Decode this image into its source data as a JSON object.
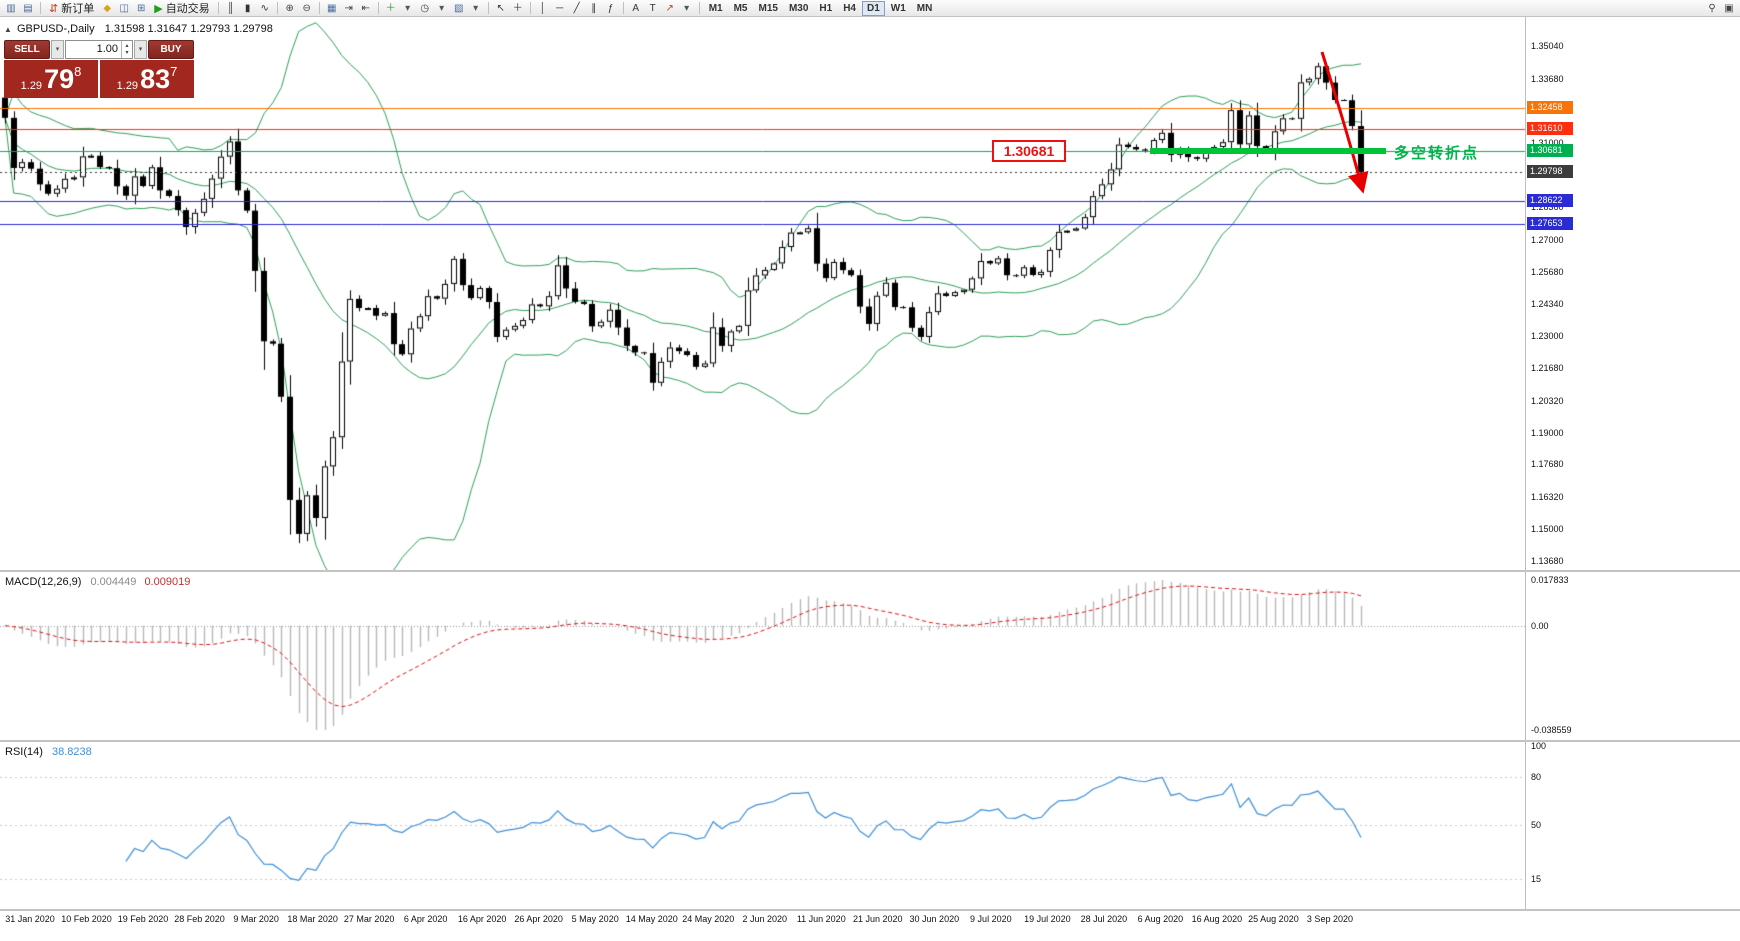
{
  "window": {
    "symbol_period": "GBPUSD-,Daily",
    "ohlc": "1.31598 1.31647 1.29793 1.29798"
  },
  "icons": {
    "trade_panel_collapse": "▲",
    "dropdown": "▾",
    "spin_up": "▴",
    "spin_down": "▾"
  },
  "toolbar": {
    "items": [
      {
        "type": "icon",
        "name": "new-chart-icon",
        "glyph": "▥"
      },
      {
        "type": "icon",
        "name": "profiles-icon",
        "glyph": "▤"
      },
      {
        "type": "sep"
      },
      {
        "type": "button",
        "name": "new-order-button",
        "glyph": "⇵",
        "glyph_color": "#c23b22",
        "label": "新订单"
      },
      {
        "type": "icon",
        "name": "metaeditor-icon",
        "glyph": "◆",
        "color": "#d9a520"
      },
      {
        "type": "icon",
        "name": "data-window-icon",
        "glyph": "◫",
        "color": "#49699c"
      },
      {
        "type": "icon",
        "name": "navigator-icon",
        "glyph": "⊞",
        "color": "#49699c"
      },
      {
        "type": "button",
        "name": "autotrading-button",
        "glyph": "▶",
        "glyph_color": "#18a018",
        "label": "自动交易"
      },
      {
        "type": "sep"
      },
      {
        "type": "icon",
        "name": "bar-chart-icon",
        "glyph": "║",
        "color": "#333333"
      },
      {
        "type": "icon",
        "name": "candlestick-chart-icon",
        "glyph": "▮",
        "color": "#333333"
      },
      {
        "type": "icon",
        "name": "line-chart-icon",
        "glyph": "∿",
        "color": "#333333"
      },
      {
        "type": "sep"
      },
      {
        "type": "icon",
        "name": "zoom-in-icon",
        "glyph": "⊕",
        "color": "#444444"
      },
      {
        "type": "icon",
        "name": "zoom-out-icon",
        "glyph": "⊖",
        "color": "#444444"
      },
      {
        "type": "sep"
      },
      {
        "type": "icon",
        "name": "tile-windows-icon",
        "glyph": "▦",
        "color": "#49699c"
      },
      {
        "type": "icon",
        "name": "auto-scroll-icon",
        "glyph": "⇥",
        "color": "#444444"
      },
      {
        "type": "icon",
        "name": "chart-shift-icon",
        "glyph": "⇤",
        "color": "#444444"
      },
      {
        "type": "sep"
      },
      {
        "type": "icon",
        "name": "indicators-icon",
        "glyph": "＋",
        "color": "#18a018"
      },
      {
        "type": "icon",
        "name": "indicators-dropdown-icon",
        "glyph": "▾",
        "color": "#555555"
      },
      {
        "type": "icon",
        "name": "periods-icon",
        "glyph": "◷",
        "color": "#444444"
      },
      {
        "type": "icon",
        "name": "periods-dropdown-icon",
        "glyph": "▾",
        "color": "#555555"
      },
      {
        "type": "icon",
        "name": "templates-icon",
        "glyph": "▧",
        "color": "#49699c"
      },
      {
        "type": "icon",
        "name": "templates-dropdown-icon",
        "glyph": "▾",
        "color": "#555555"
      },
      {
        "type": "sep"
      },
      {
        "type": "icon",
        "name": "cursor-icon",
        "glyph": "↖",
        "color": "#333333"
      },
      {
        "type": "icon",
        "name": "crosshair-icon",
        "glyph": "＋",
        "color": "#333333"
      },
      {
        "type": "sep"
      },
      {
        "type": "icon",
        "name": "vertical-line-icon",
        "glyph": "│",
        "color": "#333333"
      },
      {
        "type": "icon",
        "name": "horizontal-line-icon",
        "glyph": "─",
        "color": "#333333"
      },
      {
        "type": "icon",
        "name": "trendline-icon",
        "glyph": "╱",
        "color": "#333333"
      },
      {
        "type": "icon",
        "name": "channel-icon",
        "glyph": "∥",
        "color": "#333333"
      },
      {
        "type": "icon",
        "name": "fibonacci-icon",
        "glyph": "ƒ",
        "color": "#333333"
      },
      {
        "type": "sep"
      },
      {
        "type": "icon",
        "name": "text-icon",
        "glyph": "A",
        "color": "#333333"
      },
      {
        "type": "icon",
        "name": "text-label-icon",
        "glyph": "T",
        "color": "#333333"
      },
      {
        "type": "icon",
        "name": "arrow-tools-icon",
        "glyph": "↗",
        "color": "#c23b22"
      },
      {
        "type": "icon",
        "name": "shapes-dropdown-icon",
        "glyph": "▾",
        "color": "#555555"
      },
      {
        "type": "sep"
      },
      {
        "type": "tf",
        "name": "tf-m1",
        "label": "M1"
      },
      {
        "type": "tf",
        "name": "tf-m5",
        "label": "M5"
      },
      {
        "type": "tf",
        "name": "tf-m15",
        "label": "M15"
      },
      {
        "type": "tf",
        "name": "tf-m30",
        "label": "M30"
      },
      {
        "type": "tf",
        "name": "tf-h1",
        "label": "H1"
      },
      {
        "type": "tf",
        "name": "tf-h4",
        "label": "H4"
      },
      {
        "type": "tf",
        "name": "tf-d1",
        "label": "D1",
        "active": true
      },
      {
        "type": "tf",
        "name": "tf-w1",
        "label": "W1"
      },
      {
        "type": "tf",
        "name": "tf-mn",
        "label": "MN"
      },
      {
        "type": "spacer"
      },
      {
        "type": "icon",
        "name": "search-icon",
        "glyph": "⚲",
        "color": "#444444"
      },
      {
        "type": "icon",
        "name": "fullscreen-icon",
        "glyph": "▣",
        "color": "#444444"
      }
    ]
  },
  "trade": {
    "sell_label": "SELL",
    "buy_label": "BUY",
    "volume": "1.00",
    "sell": {
      "prefix": "1.29",
      "big": "79",
      "sup": "8"
    },
    "buy": {
      "prefix": "1.29",
      "big": "83",
      "sup": "7"
    }
  },
  "annotations": {
    "level_label": "1.30681",
    "note": "多空转折点"
  },
  "chart_data": {
    "type": "candlestick",
    "title": "GBPUSD-,Daily",
    "ohlc_header": [
      1.31598,
      1.31647,
      1.29793,
      1.29798
    ],
    "ylim": [
      1.133,
      1.3624
    ],
    "price_ticks": [
      "1.35040",
      "1.33680",
      "1.31000",
      "1.28360",
      "1.27000",
      "1.25680",
      "1.24340",
      "1.23000",
      "1.21680",
      "1.20320",
      "1.19000",
      "1.17680",
      "1.16320",
      "1.15000",
      "1.13680"
    ],
    "date_ticks": [
      "31 Jan 2020",
      "10 Feb 2020",
      "19 Feb 2020",
      "28 Feb 2020",
      "9 Mar 2020",
      "18 Mar 2020",
      "27 Mar 2020",
      "6 Apr 2020",
      "16 Apr 2020",
      "26 Apr 2020",
      "5 May 2020",
      "14 May 2020",
      "24 May 2020",
      "2 Jun 2020",
      "11 Jun 2020",
      "21 Jun 2020",
      "30 Jun 2020",
      "9 Jul 2020",
      "19 Jul 2020",
      "28 Jul 2020",
      "6 Aug 2020",
      "16 Aug 2020",
      "25 Aug 2020",
      "3 Sep 2020"
    ],
    "first_open": 1.329,
    "closes": [
      1.3206,
      1.2998,
      1.3022,
      1.2995,
      1.293,
      1.2891,
      1.2912,
      1.2953,
      1.2959,
      1.3046,
      1.3049,
      1.3002,
      1.2997,
      1.2922,
      1.2883,
      1.2963,
      1.2923,
      1.3001,
      1.2905,
      1.2882,
      1.2823,
      1.2753,
      1.2812,
      1.287,
      1.2954,
      1.3045,
      1.3108,
      1.2905,
      1.2821,
      1.2571,
      1.2279,
      1.2269,
      1.2049,
      1.1621,
      1.148,
      1.164,
      1.1546,
      1.176,
      1.1881,
      1.2195,
      1.2455,
      1.2417,
      1.2417,
      1.2385,
      1.2396,
      1.2267,
      1.2225,
      1.2332,
      1.2383,
      1.2466,
      1.2456,
      1.2517,
      1.2621,
      1.2512,
      1.2458,
      1.25,
      1.2442,
      1.2297,
      1.2327,
      1.2343,
      1.2367,
      1.2432,
      1.2424,
      1.2466,
      1.2594,
      1.2498,
      1.2443,
      1.2434,
      1.2341,
      1.236,
      1.241,
      1.2336,
      1.226,
      1.2233,
      1.223,
      1.2107,
      1.2194,
      1.2253,
      1.2238,
      1.2222,
      1.2173,
      1.2187,
      1.2337,
      1.226,
      1.232,
      1.2343,
      1.249,
      1.2552,
      1.2575,
      1.2602,
      1.267,
      1.273,
      1.2731,
      1.2748,
      1.2601,
      1.2541,
      1.2608,
      1.2574,
      1.2553,
      1.2423,
      1.2351,
      1.2468,
      1.2522,
      1.2421,
      1.242,
      1.2335,
      1.2297,
      1.24,
      1.2478,
      1.2467,
      1.2483,
      1.2493,
      1.254,
      1.2612,
      1.2602,
      1.2623,
      1.2553,
      1.2551,
      1.2586,
      1.2554,
      1.2567,
      1.2658,
      1.2733,
      1.2738,
      1.2747,
      1.2794,
      1.2881,
      1.293,
      1.2992,
      1.3095,
      1.3085,
      1.3075,
      1.307,
      1.3114,
      1.3144,
      1.3052,
      1.3078,
      1.3043,
      1.3036,
      1.3068,
      1.3085,
      1.3105,
      1.3238,
      1.3096,
      1.3216,
      1.3089,
      1.3068,
      1.315,
      1.3204,
      1.3202,
      1.3353,
      1.3368,
      1.342,
      1.3352,
      1.328,
      1.3279,
      1.3172,
      1.298
    ],
    "levels": [
      {
        "price": 1.32458,
        "label": "1.32458",
        "color": "#f97306",
        "style": "solid"
      },
      {
        "price": 1.3161,
        "label": "1.31610",
        "color": "#ff2e0e",
        "style": "solid"
      },
      {
        "price": 1.30681,
        "label": "1.30681",
        "color": "#00b050",
        "style": "solid"
      },
      {
        "price": 1.29798,
        "label": "1.29798",
        "color": "#3c3c3c",
        "style": "dotted"
      },
      {
        "price": 1.28622,
        "label": "1.28622",
        "color": "#2b2bd5",
        "style": "solid"
      },
      {
        "price": 1.27653,
        "label": "1.27653",
        "color": "#2b2bd5",
        "style": "solid"
      }
    ],
    "bollinger": {
      "period": 20,
      "deviation": 2,
      "color": "#2e9e57"
    },
    "macd": {
      "label": "MACD(12,26,9)",
      "main": "0.004449",
      "signal": "0.009019",
      "axis": [
        "0.017833",
        "0.00",
        "-0.038559"
      ],
      "histogram_color": "#b8b8b8",
      "signal_color": "#e01010"
    },
    "rsi": {
      "label": "RSI(14)",
      "value": "38.8238",
      "axis": [
        "100",
        "80",
        "50",
        "15"
      ],
      "levels": [
        80,
        50,
        15
      ],
      "color": "#3f8fd6"
    }
  }
}
